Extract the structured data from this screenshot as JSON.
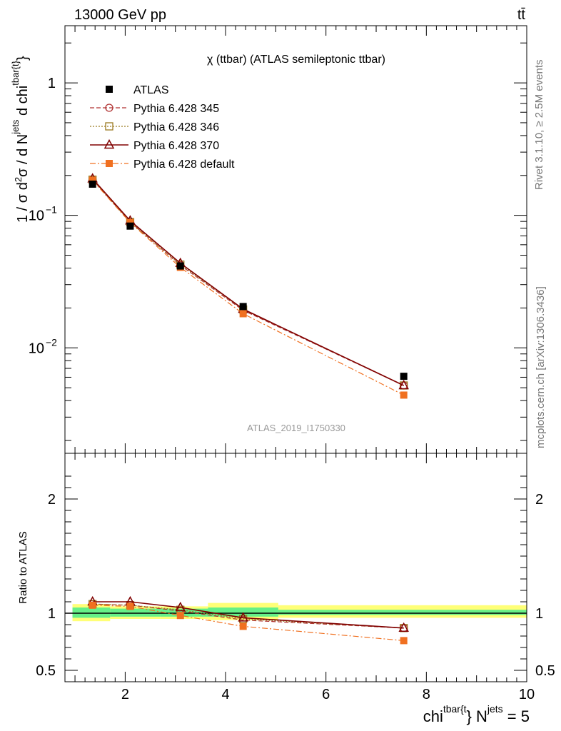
{
  "header": {
    "energy_label": "13000 GeV pp",
    "process_label": "tt̄"
  },
  "side_labels": {
    "rivet": "Rivet 3.1.10, ≥ 2.5M events",
    "mcplots": "mcplots.cern.ch [arXiv:1306.3436]"
  },
  "chart_data": [
    {
      "type": "line",
      "panel": "main",
      "title": "χ (ttbar) (ATLAS semileptonic ttbar)",
      "watermark": "ATLAS_2019_I1750330",
      "ylabel": "1 / σ d²σ / d N^jets d chi^tbar{t}",
      "yscale": "log",
      "ylim": [
        0.0016,
        2.7
      ],
      "xlim": [
        0.8,
        10.0
      ],
      "yticks": [
        {
          "value": 0.01,
          "base": "10",
          "exp": "−2"
        },
        {
          "value": 0.1,
          "base": "10",
          "exp": "−1"
        },
        {
          "value": 1,
          "base": "1",
          "exp": ""
        }
      ],
      "legend_position": "top-left",
      "series": [
        {
          "name": "ATLAS",
          "color": "#000000",
          "marker": "square-filled",
          "line": "none",
          "x": [
            1.35,
            2.1,
            3.1,
            4.35,
            7.55
          ],
          "y": [
            0.172,
            0.083,
            0.0415,
            0.0205,
            0.0061
          ]
        },
        {
          "name": "Pythia 6.428 345",
          "color": "#b03030",
          "marker": "circle-open",
          "line": "dashed",
          "x": [
            1.35,
            2.1,
            3.1,
            4.35,
            7.55
          ],
          "y": [
            0.186,
            0.089,
            0.042,
            0.0192,
            0.0052
          ]
        },
        {
          "name": "Pythia 6.428 346",
          "color": "#9a7a20",
          "marker": "square-open",
          "line": "dotted",
          "x": [
            1.35,
            2.1,
            3.1,
            4.35,
            7.55
          ],
          "y": [
            0.186,
            0.089,
            0.0425,
            0.0195,
            0.0052
          ]
        },
        {
          "name": "Pythia 6.428 370",
          "color": "#800000",
          "marker": "triangle-open",
          "line": "solid",
          "x": [
            1.35,
            2.1,
            3.1,
            4.35,
            7.55
          ],
          "y": [
            0.189,
            0.091,
            0.0435,
            0.0196,
            0.0052
          ]
        },
        {
          "name": "Pythia 6.428 default",
          "color": "#f07020",
          "marker": "square-filled",
          "line": "dashdot",
          "x": [
            1.35,
            2.1,
            3.1,
            4.35,
            7.55
          ],
          "y": [
            0.184,
            0.088,
            0.0405,
            0.0181,
            0.0044
          ]
        }
      ]
    },
    {
      "type": "line",
      "panel": "ratio",
      "ylabel": "Ratio to ATLAS",
      "xlabel": "chi^tbar{t}} N^jets = 5",
      "ylim": [
        0.4,
        2.4
      ],
      "xlim": [
        0.8,
        10.0
      ],
      "xticks": [
        2,
        4,
        6,
        8,
        10
      ],
      "yticks": [
        0.5,
        1,
        2
      ],
      "bands": [
        {
          "x0": 0.95,
          "x1": 1.7,
          "green": [
            0.96,
            1.05
          ],
          "yellow": [
            0.93,
            1.08
          ]
        },
        {
          "x0": 1.7,
          "x1": 2.7,
          "green": [
            0.97,
            1.04
          ],
          "yellow": [
            0.95,
            1.06
          ]
        },
        {
          "x0": 2.7,
          "x1": 3.65,
          "green": [
            0.97,
            1.04
          ],
          "yellow": [
            0.95,
            1.06
          ]
        },
        {
          "x0": 3.65,
          "x1": 5.05,
          "green": [
            0.97,
            1.05
          ],
          "yellow": [
            0.94,
            1.09
          ]
        },
        {
          "x0": 5.05,
          "x1": 10.0,
          "green": [
            0.985,
            1.03
          ],
          "yellow": [
            0.96,
            1.07
          ]
        }
      ],
      "series": [
        {
          "name": "Pythia 6.428 345",
          "color": "#b03030",
          "marker": "circle-open",
          "line": "dashed",
          "x": [
            1.35,
            2.1,
            3.1,
            4.35,
            7.55
          ],
          "y": [
            1.08,
            1.07,
            1.02,
            0.94,
            0.87
          ]
        },
        {
          "name": "Pythia 6.428 346",
          "color": "#9a7a20",
          "marker": "square-open",
          "line": "dotted",
          "x": [
            1.35,
            2.1,
            3.1,
            4.35,
            7.55
          ],
          "y": [
            1.08,
            1.07,
            1.03,
            0.95,
            0.87
          ]
        },
        {
          "name": "Pythia 6.428 370",
          "color": "#800000",
          "marker": "triangle-open",
          "line": "solid",
          "x": [
            1.35,
            2.1,
            3.1,
            4.35,
            7.55
          ],
          "y": [
            1.1,
            1.1,
            1.05,
            0.96,
            0.87
          ]
        },
        {
          "name": "Pythia 6.428 default",
          "color": "#f07020",
          "marker": "square-filled",
          "line": "dashdot",
          "x": [
            1.35,
            2.1,
            3.1,
            4.35,
            7.55
          ],
          "y": [
            1.07,
            1.06,
            0.98,
            0.885,
            0.76
          ]
        }
      ]
    }
  ]
}
